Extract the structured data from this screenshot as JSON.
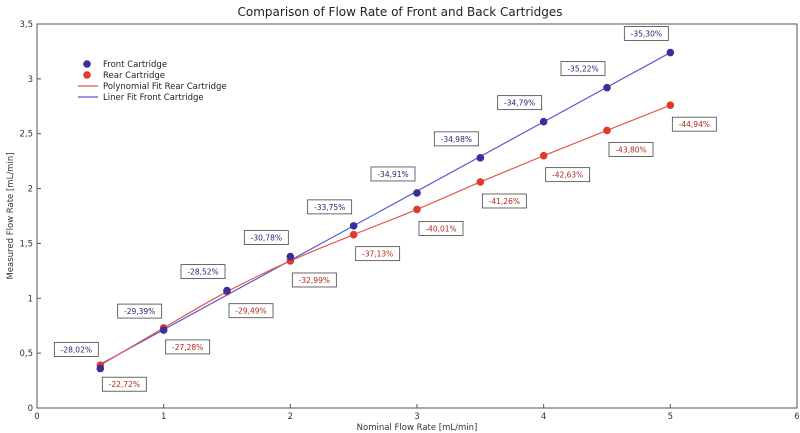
{
  "chart_data": {
    "type": "scatter",
    "title": "Comparison of Flow Rate of Front and Back Cartridges",
    "xlabel": "Nominal Flow Rate [mL/min]",
    "ylabel": "Measured Flow Rate [mL/min]",
    "xlim": [
      0,
      6
    ],
    "ylim": [
      0,
      3.5
    ],
    "xticks": [
      "0",
      "1",
      "2",
      "3",
      "4",
      "5",
      "6"
    ],
    "yticks": [
      "0",
      "0,5",
      "1",
      "1,5",
      "2",
      "2,5",
      "3",
      "3,5"
    ],
    "grid": false,
    "legend_position": "top-left",
    "x": [
      0.5,
      1.0,
      1.5,
      2.0,
      2.5,
      3.0,
      3.5,
      4.0,
      4.5,
      5.0
    ],
    "series": [
      {
        "name": "Front Cartridge",
        "color": "#3a2f9a",
        "values": [
          0.36,
          0.71,
          1.07,
          1.38,
          1.66,
          1.96,
          2.28,
          2.61,
          2.92,
          3.24
        ],
        "labels": [
          "-28,02%",
          "-29,39%",
          "-28,52%",
          "-30,78%",
          "-33,75%",
          "-34,91%",
          "-34,98%",
          "-34,79%",
          "-35,22%",
          "-35,30%"
        ]
      },
      {
        "name": "Rear Cartridge",
        "color": "#e03a2a",
        "values": [
          0.39,
          0.73,
          1.06,
          1.34,
          1.58,
          1.81,
          2.06,
          2.3,
          2.53,
          2.76
        ],
        "labels": [
          "-22,72%",
          "-27,28%",
          "-29,49%",
          "-32,99%",
          "-37,13%",
          "-40,01%",
          "-41,26%",
          "-42,63%",
          "-43,80%",
          "-44,94%"
        ]
      }
    ],
    "fits": [
      {
        "name": "Polynomial Fit Rear Cartridge",
        "color": "#e05a50",
        "of": "Rear Cartridge"
      },
      {
        "name": "Liner Fit Front Cartridge",
        "color": "#5a5ad0",
        "of": "Front Cartridge"
      }
    ]
  }
}
